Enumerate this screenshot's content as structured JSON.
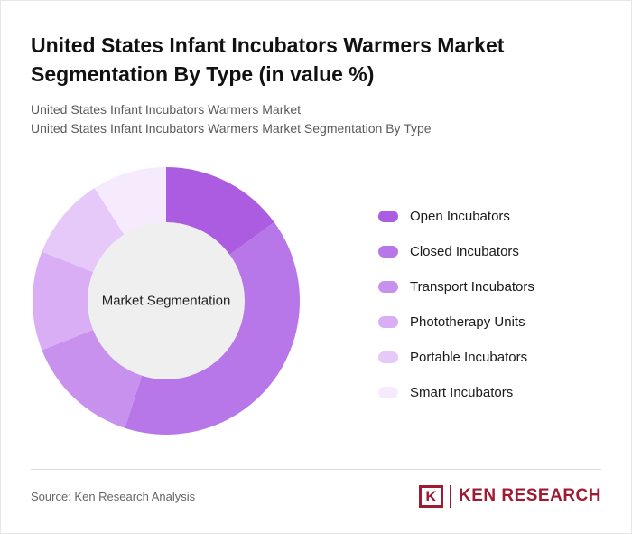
{
  "page": {
    "title_line1": "United States Infant Incubators Warmers Market",
    "title_line2": "Segmentation By Type (in value %)",
    "subtitle_line1": "United States Infant Incubators Warmers Market",
    "subtitle_line2": "United States Infant Incubators Warmers Market Segmentation By Type"
  },
  "chart_data": {
    "type": "pie",
    "donut": true,
    "title": "United States Infant Incubators Warmers Market Segmentation By Type (in value %)",
    "center_label": "Market Segmentation",
    "legend_position": "right",
    "start_angle_deg": -90,
    "direction": "clockwise",
    "categories": [
      "Open Incubators",
      "Closed Incubators",
      "Transport Incubators",
      "Phototherapy Units",
      "Portable Incubators",
      "Smart Incubators"
    ],
    "values": [
      15,
      40,
      14,
      12,
      10,
      9
    ],
    "colors": [
      "#ab5ce1",
      "#b877e9",
      "#c891ee",
      "#d9aef4",
      "#e7c9f9",
      "#f5ebfd"
    ],
    "hole_color": "#efefef",
    "hole_ratio": 0.59
  },
  "footer": {
    "source": "Source: Ken Research Analysis",
    "logo_letter": "K",
    "logo_text": "KEN RESEARCH",
    "logo_color": "#9e1b32"
  }
}
